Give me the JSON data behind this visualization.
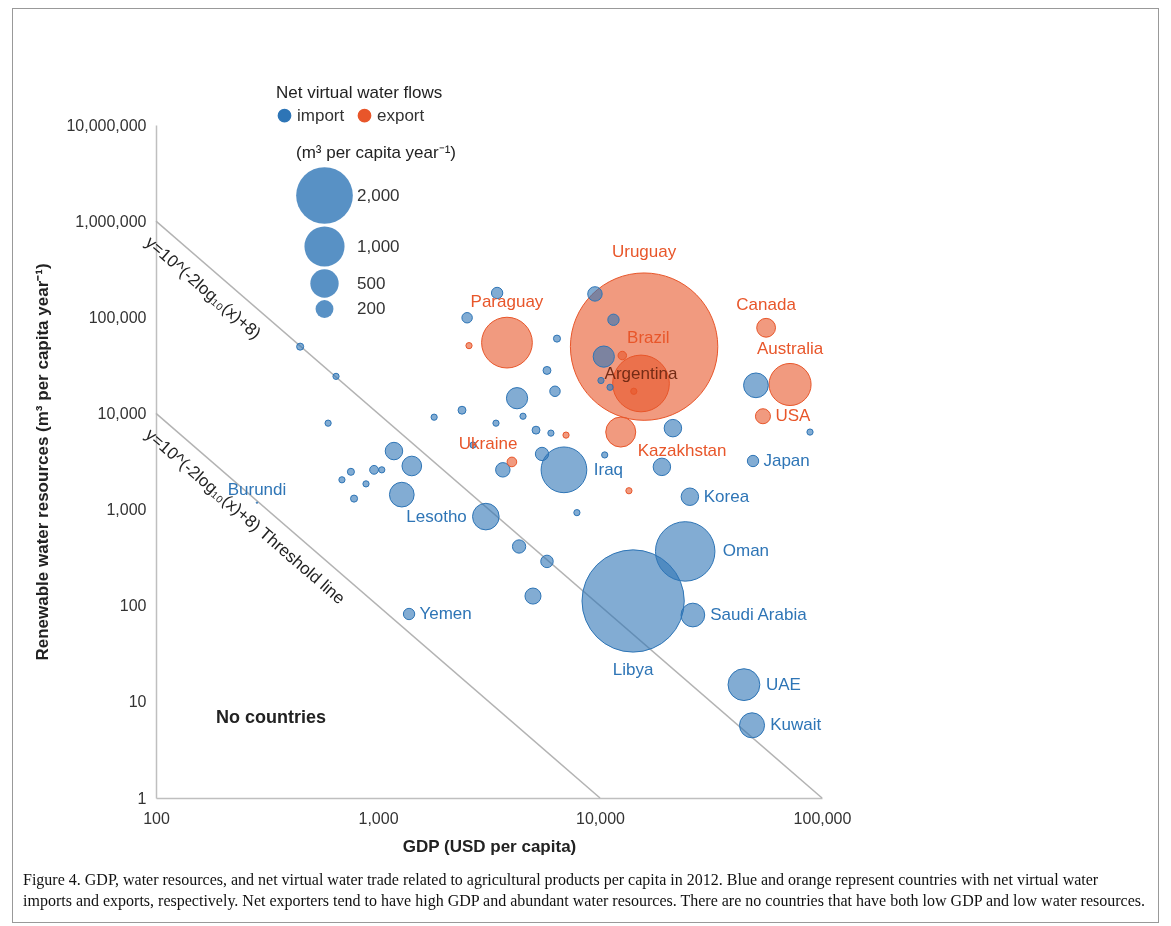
{
  "chart_data": {
    "type": "bubble",
    "xlabel": "GDP (USD per capita)",
    "ylabel": "Renewable water resources (m³ per capita year⁻¹)",
    "xlim": [
      100,
      100000
    ],
    "ylim": [
      1,
      10000000
    ],
    "xticks": [
      100,
      {
        "value": 1000,
        "label": "1,000"
      },
      {
        "value": 10000,
        "label": "10,000"
      },
      {
        "value": 100000,
        "label": "100,000"
      }
    ],
    "yticks": [
      1,
      10,
      100,
      {
        "value": 1000,
        "label": "1,000"
      },
      {
        "value": 10000,
        "label": "10,000"
      },
      {
        "value": 100000,
        "label": "100,000"
      },
      {
        "value": 1000000,
        "label": "1,000,000"
      },
      {
        "value": 10000000,
        "label": "10,000,000"
      }
    ],
    "log": "xy",
    "marker": "circle",
    "legend": "top left",
    "legend_title": "Net virtual water flows",
    "size_legend": [
      {
        "value": 2000,
        "label": "2,000"
      },
      {
        "value": 1000,
        "label": "1,000"
      },
      500,
      200
    ],
    "annotations": [
      "(m³ per capita year⁻¹)",
      "No countries",
      "Figure 4. GDP, water resources, and net virtual water trade related to agricultural products per capita in 2012. Blue and orange represent countries with net virtual water imports and exports, respectively. Net exporters tend to have high GDP and abundant water resources. There are no countries that have both low GDP and low water resources."
    ],
    "series": [
      {
        "name": "y=10^(-2log₁₀(x)+8)",
        "type": "line",
        "marker": "none",
        "color": "#b3b3b3",
        "x": [
          100,
          100000
        ],
        "values": [
          1000000,
          1
        ]
      },
      {
        "name": "y=10^(-2log₁₀(x)+8) Threshold line",
        "type": "line",
        "marker": "none",
        "color": "#b3b3b3",
        "x": [
          100,
          10000
        ],
        "values": [
          10000,
          1
        ]
      },
      {
        "name": "import",
        "color": "#2e75b6",
        "x": [
          14100,
          24200,
          26200,
          44500,
          48400,
          25400,
          48900,
          6880,
          3060,
          1380,
          285,
          50400,
          21300,
          19000,
          10400,
          9490,
          11500,
          3440,
          2520,
          4230,
          5770,
          6270,
          6400,
          5480,
          3650,
          5150,
          2390,
          88300,
          7870,
          4500,
          10500,
          10100,
          11100,
          446,
          647,
          596,
          1180,
          1420,
          1280,
          960,
          1040,
          755,
          780,
          883,
          688,
          4320,
          5770,
          4990,
          3400,
          1790,
          2680,
          6010
        ],
        "values": [
          112,
          367,
          80,
          15.1,
          5.7,
          1360,
          3200,
          2590,
          845,
          82,
          1180,
          19600,
          7030,
          2780,
          39000,
          175000,
          94200,
          179000,
          98900,
          14400,
          28000,
          17000,
          60000,
          3790,
          2590,
          6700,
          10800,
          6400,
          929,
          9350,
          3700,
          22000,
          18700,
          49500,
          24300,
          7920,
          4060,
          2840,
          1430,
          2590,
          2590,
          2470,
          1300,
          1850,
          2040,
          413,
          289,
          126,
          7920,
          9140,
          4690,
          6240
        ],
        "sizes": [
          6500,
          2200,
          350,
          630,
          390,
          190,
          80,
          1300,
          440,
          80,
          1.3,
          380,
          190,
          190,
          280,
          130,
          80,
          80,
          68,
          280,
          39,
          68,
          31,
          110,
          130,
          39,
          39,
          24,
          24,
          24,
          24,
          24,
          24,
          31,
          24,
          24,
          190,
          240,
          380,
          48,
          24,
          31,
          31,
          24,
          24,
          110,
          97,
          160,
          24,
          24,
          24,
          24
        ],
        "value_labels": [
          "Libya",
          "Oman",
          "Saudi Arabia",
          "UAE",
          "Kuwait",
          "Korea",
          "Japan",
          "Iraq",
          "Lesotho",
          "Yemen",
          "Burundi",
          null,
          null,
          null,
          null,
          null,
          null,
          null,
          null,
          null,
          null,
          null,
          null,
          null,
          null,
          null,
          null,
          null,
          null,
          null,
          null,
          null,
          null,
          null,
          null,
          null,
          null,
          null,
          null,
          null,
          null,
          null,
          null,
          null,
          null,
          null,
          null,
          null,
          null,
          null,
          null,
          null
        ]
      },
      {
        "name": "export",
        "color": "#e8562a",
        "x": [
          15800,
          3810,
          15300,
          12600,
          12400,
          56000,
          71800,
          54200,
          4010,
          14200,
          2570,
          7030,
          13500
        ],
        "values": [
          49500,
          54500,
          20500,
          40000,
          6400,
          77800,
          20000,
          9350,
          3130,
          17000,
          50700,
          5950,
          1570
        ],
        "sizes": [
          13500,
          1600,
          2000,
          45,
          560,
          220,
          1100,
          140,
          58,
          24,
          24,
          24,
          24
        ],
        "value_labels": [
          "Uruguay",
          "Paraguay",
          "Argentina",
          "Brazil",
          "Kazakhstan",
          "Canada",
          "Australia",
          "USA",
          "Ukraine",
          null,
          null,
          null,
          null
        ]
      }
    ]
  }
}
